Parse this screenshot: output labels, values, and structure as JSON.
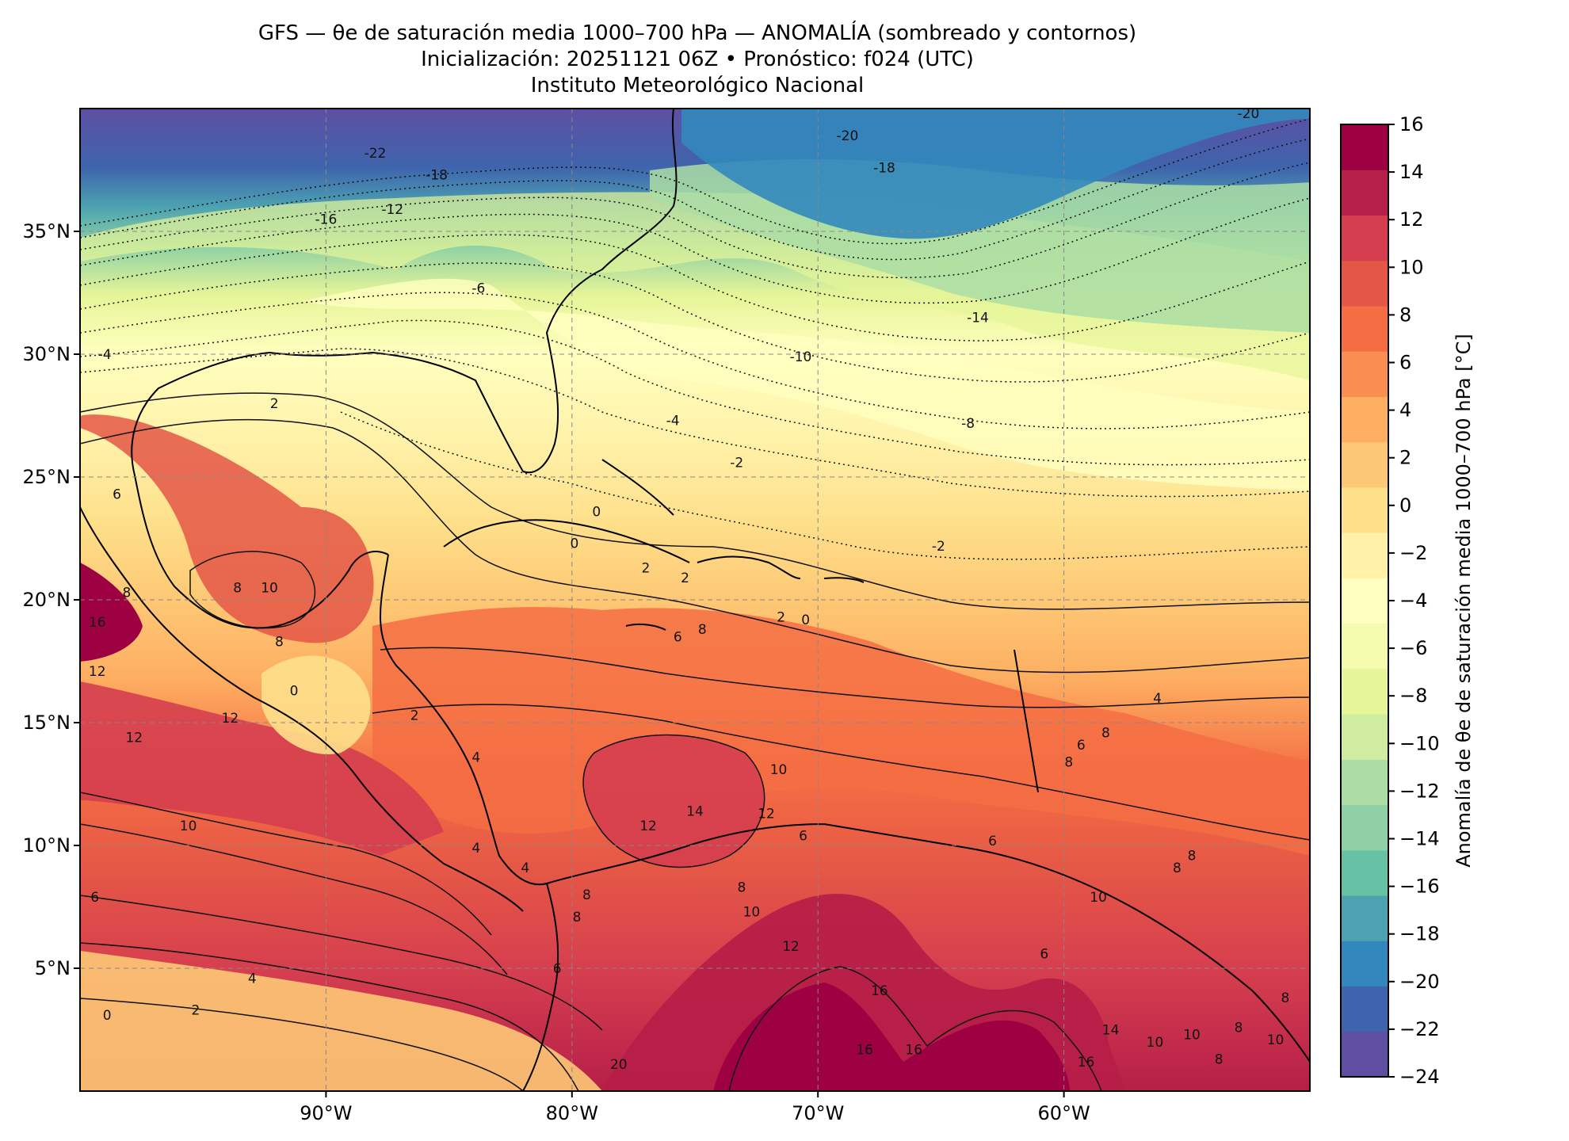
{
  "title": {
    "line1": "GFS — θe de saturación media 1000–700 hPa — ANOMALÍA (sombreado y contornos)",
    "line2": "Inicialización: 20251121 06Z   •   Pronóstico: f024 (UTC)",
    "line3": "Instituto Meteorológico Nacional"
  },
  "map": {
    "lon_range": [
      -100,
      -50
    ],
    "lat_range": [
      0,
      40
    ],
    "lat_ticks": [
      {
        "value": 35,
        "label": "35°N"
      },
      {
        "value": 30,
        "label": "30°N"
      },
      {
        "value": 25,
        "label": "25°N"
      },
      {
        "value": 20,
        "label": "20°N"
      },
      {
        "value": 15,
        "label": "15°N"
      },
      {
        "value": 10,
        "label": "10°N"
      },
      {
        "value": 5,
        "label": "5°N"
      }
    ],
    "lon_ticks": [
      {
        "value": -90,
        "label": "90°W"
      },
      {
        "value": -80,
        "label": "80°W"
      },
      {
        "value": -70,
        "label": "70°W"
      },
      {
        "value": -60,
        "label": "60°W"
      }
    ],
    "gridlines": "dashed",
    "contour_labels": [
      {
        "lon": -88,
        "lat": 38.2,
        "text": "-22"
      },
      {
        "lon": -85.5,
        "lat": 37.3,
        "text": "-18"
      },
      {
        "lon": -90,
        "lat": 35.5,
        "text": "-16"
      },
      {
        "lon": -87.3,
        "lat": 35.9,
        "text": "-12"
      },
      {
        "lon": -68.8,
        "lat": 38.9,
        "text": "-20"
      },
      {
        "lon": -67.3,
        "lat": 37.6,
        "text": "-18"
      },
      {
        "lon": -52.5,
        "lat": 39.8,
        "text": "-20"
      },
      {
        "lon": -83.8,
        "lat": 32.7,
        "text": "-6"
      },
      {
        "lon": -99,
        "lat": 30,
        "text": "-4"
      },
      {
        "lon": -70.7,
        "lat": 29.9,
        "text": "-10"
      },
      {
        "lon": -63.5,
        "lat": 31.5,
        "text": "-14"
      },
      {
        "lon": -63.9,
        "lat": 27.2,
        "text": "-8"
      },
      {
        "lon": -75.9,
        "lat": 27.3,
        "text": "-4"
      },
      {
        "lon": -73.3,
        "lat": 25.6,
        "text": "-2"
      },
      {
        "lon": -79,
        "lat": 23.6,
        "text": "0"
      },
      {
        "lon": -79.9,
        "lat": 22.3,
        "text": "0"
      },
      {
        "lon": -77,
        "lat": 21.3,
        "text": "2"
      },
      {
        "lon": -75.4,
        "lat": 20.9,
        "text": "2"
      },
      {
        "lon": -65.1,
        "lat": 22.2,
        "text": "-2"
      },
      {
        "lon": -92.1,
        "lat": 28,
        "text": "2"
      },
      {
        "lon": -98.5,
        "lat": 24.3,
        "text": "6"
      },
      {
        "lon": -93.6,
        "lat": 20.5,
        "text": "8"
      },
      {
        "lon": -92.3,
        "lat": 20.5,
        "text": "10"
      },
      {
        "lon": -98.1,
        "lat": 20.3,
        "text": "8"
      },
      {
        "lon": -99.3,
        "lat": 19.1,
        "text": "16"
      },
      {
        "lon": -99.3,
        "lat": 17.1,
        "text": "12"
      },
      {
        "lon": -91.9,
        "lat": 18.3,
        "text": "8"
      },
      {
        "lon": -75.7,
        "lat": 18.5,
        "text": "6"
      },
      {
        "lon": -74.7,
        "lat": 18.8,
        "text": "8"
      },
      {
        "lon": -71.5,
        "lat": 19.3,
        "text": "2"
      },
      {
        "lon": -70.5,
        "lat": 19.2,
        "text": "0"
      },
      {
        "lon": -91.3,
        "lat": 16.3,
        "text": "0"
      },
      {
        "lon": -86.4,
        "lat": 15.3,
        "text": "2"
      },
      {
        "lon": -93.9,
        "lat": 15.2,
        "text": "12"
      },
      {
        "lon": -97.8,
        "lat": 14.4,
        "text": "12"
      },
      {
        "lon": -95.6,
        "lat": 10.8,
        "text": "10"
      },
      {
        "lon": -71.6,
        "lat": 13.1,
        "text": "10"
      },
      {
        "lon": -76.9,
        "lat": 10.8,
        "text": "12"
      },
      {
        "lon": -75,
        "lat": 11.4,
        "text": "14"
      },
      {
        "lon": -72.1,
        "lat": 11.3,
        "text": "12"
      },
      {
        "lon": -70.6,
        "lat": 10.4,
        "text": "6"
      },
      {
        "lon": -62.9,
        "lat": 10.2,
        "text": "6"
      },
      {
        "lon": -54.8,
        "lat": 9.6,
        "text": "8"
      },
      {
        "lon": -59.3,
        "lat": 14.1,
        "text": "6"
      },
      {
        "lon": -58.3,
        "lat": 14.6,
        "text": "8"
      },
      {
        "lon": -59.8,
        "lat": 13.4,
        "text": "8"
      },
      {
        "lon": -56.2,
        "lat": 16,
        "text": "4"
      },
      {
        "lon": -83.9,
        "lat": 13.6,
        "text": "4"
      },
      {
        "lon": -83.9,
        "lat": 9.9,
        "text": "4"
      },
      {
        "lon": -81.9,
        "lat": 9.1,
        "text": "4"
      },
      {
        "lon": -79.4,
        "lat": 8,
        "text": "8"
      },
      {
        "lon": -79.8,
        "lat": 7.1,
        "text": "8"
      },
      {
        "lon": -73.1,
        "lat": 8.3,
        "text": "8"
      },
      {
        "lon": -72.7,
        "lat": 7.3,
        "text": "10"
      },
      {
        "lon": -71.1,
        "lat": 5.9,
        "text": "12"
      },
      {
        "lon": -60.8,
        "lat": 5.6,
        "text": "6"
      },
      {
        "lon": -51,
        "lat": 3.8,
        "text": "8"
      },
      {
        "lon": -58.6,
        "lat": 7.9,
        "text": "10"
      },
      {
        "lon": -55.4,
        "lat": 9.1,
        "text": "8"
      },
      {
        "lon": -99.4,
        "lat": 7.9,
        "text": "6"
      },
      {
        "lon": -80.6,
        "lat": 5,
        "text": "6"
      },
      {
        "lon": -93,
        "lat": 4.6,
        "text": "4"
      },
      {
        "lon": -95.3,
        "lat": 3.3,
        "text": "2"
      },
      {
        "lon": -98.9,
        "lat": 3.1,
        "text": "0"
      },
      {
        "lon": -67.5,
        "lat": 4.1,
        "text": "16"
      },
      {
        "lon": -68.1,
        "lat": 1.7,
        "text": "16"
      },
      {
        "lon": -66.1,
        "lat": 1.7,
        "text": "16"
      },
      {
        "lon": -59.1,
        "lat": 1.2,
        "text": "16"
      },
      {
        "lon": -58.1,
        "lat": 2.5,
        "text": "14"
      },
      {
        "lon": -56.3,
        "lat": 2,
        "text": "10"
      },
      {
        "lon": -54.8,
        "lat": 2.3,
        "text": "10"
      },
      {
        "lon": -53.7,
        "lat": 1.3,
        "text": "8"
      },
      {
        "lon": -52.9,
        "lat": 2.6,
        "text": "8"
      },
      {
        "lon": -51.4,
        "lat": 2.1,
        "text": "10"
      },
      {
        "lon": -78.1,
        "lat": 1.1,
        "text": "20"
      }
    ]
  },
  "colorbar": {
    "label": "Anomalía de θe de saturación media 1000–700 hPa [°C]",
    "ticks": [
      "16",
      "14",
      "12",
      "10",
      "8",
      "6",
      "4",
      "2",
      "0",
      "−2",
      "−4",
      "−6",
      "−8",
      "−10",
      "−12",
      "−14",
      "−16",
      "−18",
      "−20",
      "−22",
      "−24"
    ],
    "levels": [
      -24,
      -22,
      -20,
      -18,
      -16,
      -14,
      -12,
      -10,
      -8,
      -6,
      -4,
      -2,
      0,
      2,
      4,
      6,
      8,
      10,
      12,
      14,
      16
    ],
    "colors": [
      "#5e4fa2",
      "#3f64ad",
      "#3288bd",
      "#4ca2b1",
      "#66c2a5",
      "#8fd1a4",
      "#abdda4",
      "#cfeca0",
      "#e6f598",
      "#f4faae",
      "#ffffbf",
      "#fff1a8",
      "#fee08b",
      "#fdc875",
      "#fdae61",
      "#f88e52",
      "#f46d43",
      "#e45646",
      "#d53e4f",
      "#b61f48",
      "#9e0142"
    ]
  }
}
